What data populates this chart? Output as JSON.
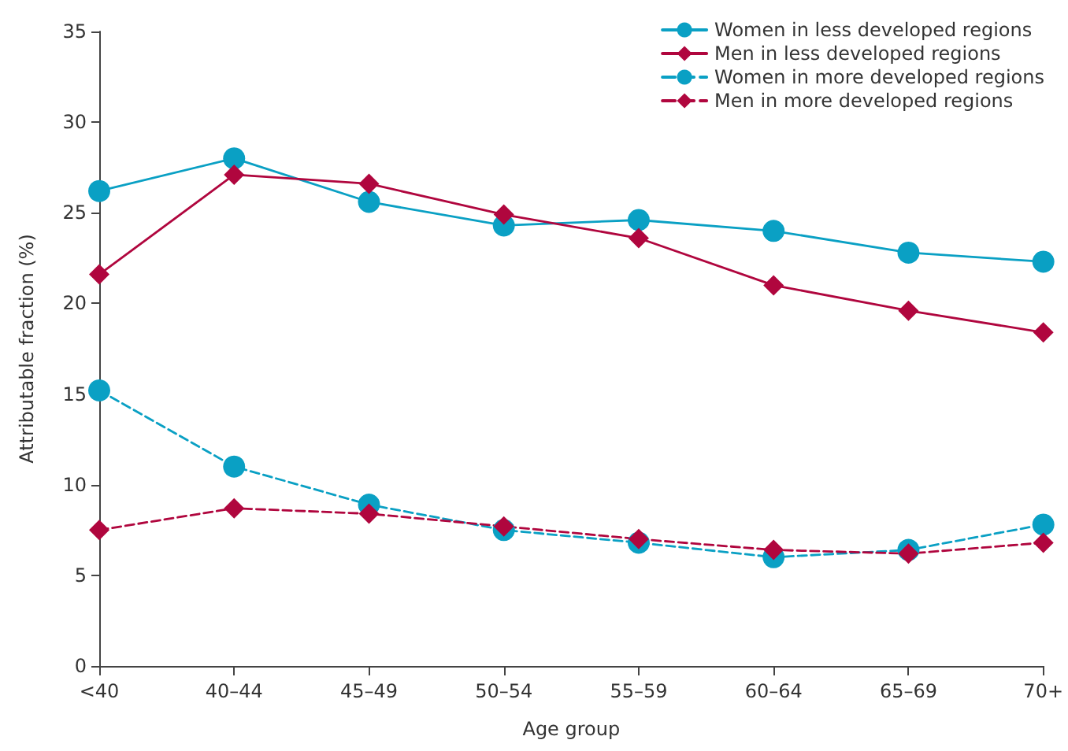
{
  "chart_data": {
    "type": "line",
    "xlabel": "Age group",
    "ylabel": "Attributable fraction (%)",
    "categories": [
      "<40",
      "40–44",
      "45–49",
      "50–54",
      "55–59",
      "60–64",
      "65–69",
      "70+"
    ],
    "series": [
      {
        "name": "Women in less developed regions",
        "color": "#0aa0c4",
        "marker": "circle",
        "line_style": "solid",
        "values": [
          26.2,
          28.0,
          25.6,
          24.3,
          24.6,
          24.0,
          22.8,
          22.3
        ]
      },
      {
        "name": "Men in less developed regions",
        "color": "#b0063e",
        "marker": "diamond",
        "line_style": "solid",
        "values": [
          21.6,
          27.1,
          26.6,
          24.9,
          23.6,
          21.0,
          19.6,
          18.4
        ]
      },
      {
        "name": "Women in more developed regions",
        "color": "#0aa0c4",
        "marker": "circle",
        "line_style": "dashed",
        "values": [
          15.2,
          11.0,
          8.9,
          7.5,
          6.8,
          6.0,
          6.4,
          7.8
        ]
      },
      {
        "name": "Men in more developed regions",
        "color": "#b0063e",
        "marker": "diamond",
        "line_style": "dashed",
        "values": [
          7.5,
          8.7,
          8.4,
          7.7,
          7.0,
          6.4,
          6.2,
          6.8
        ]
      }
    ],
    "ylim": [
      0,
      35
    ],
    "yticks": [
      0,
      5,
      10,
      15,
      20,
      25,
      30,
      35
    ],
    "grid": false,
    "legend": "top right"
  }
}
